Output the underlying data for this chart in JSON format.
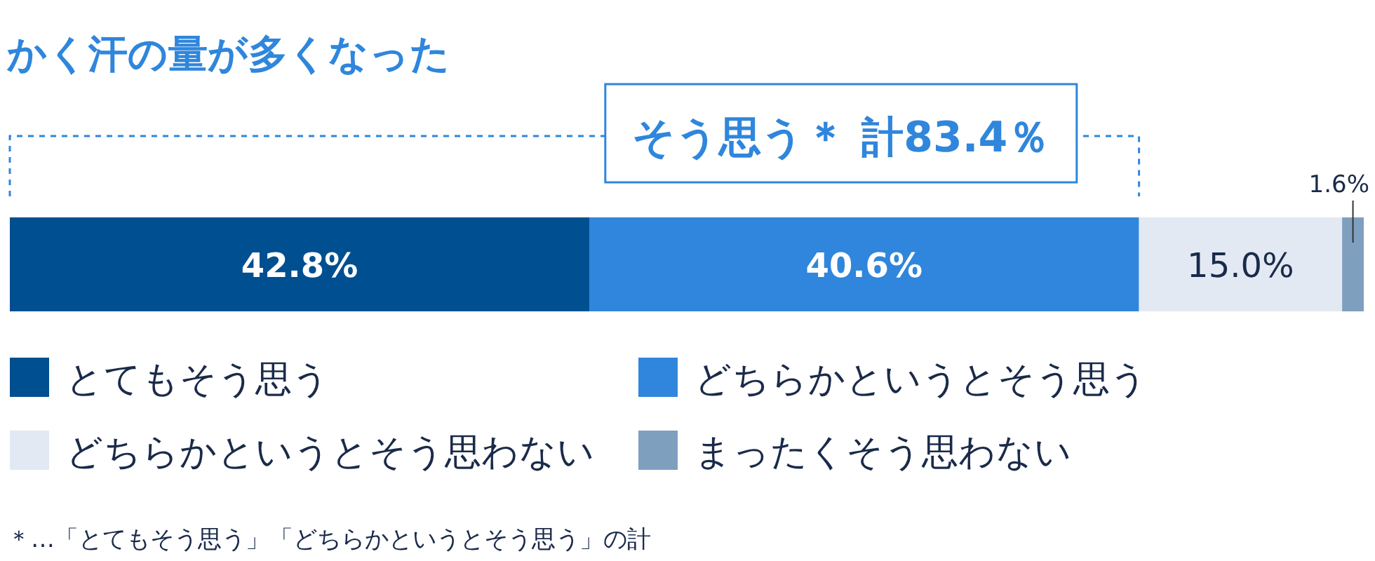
{
  "chart_data": {
    "type": "bar",
    "orientation": "horizontal",
    "stacked": true,
    "title": "かく汗の量が多くなった",
    "categories": [
      null
    ],
    "xlim": [
      0,
      100
    ],
    "legend": "bottom",
    "series": [
      {
        "name": "とてもそう思う",
        "color": "#004f90",
        "values": [
          42.8
        ],
        "value_labels": [
          "42.8%"
        ]
      },
      {
        "name": "どちらかというとそう思う",
        "color": "#2f86dc",
        "values": [
          40.6
        ],
        "value_labels": [
          "40.6%"
        ]
      },
      {
        "name": "どちらかというとそう思わない",
        "color": "#e3e9f2",
        "values": [
          15.0
        ],
        "value_labels": [
          "15.0%"
        ]
      },
      {
        "name": "まったくそう思わない",
        "color": "#7f9fbf",
        "values": [
          1.6
        ],
        "value_labels": [
          "1.6%"
        ]
      }
    ],
    "annotations": [
      "そう思う＊ 計83.4％",
      "＊…「とてもそう思う」「どちらかというとそう思う」の計"
    ]
  }
}
